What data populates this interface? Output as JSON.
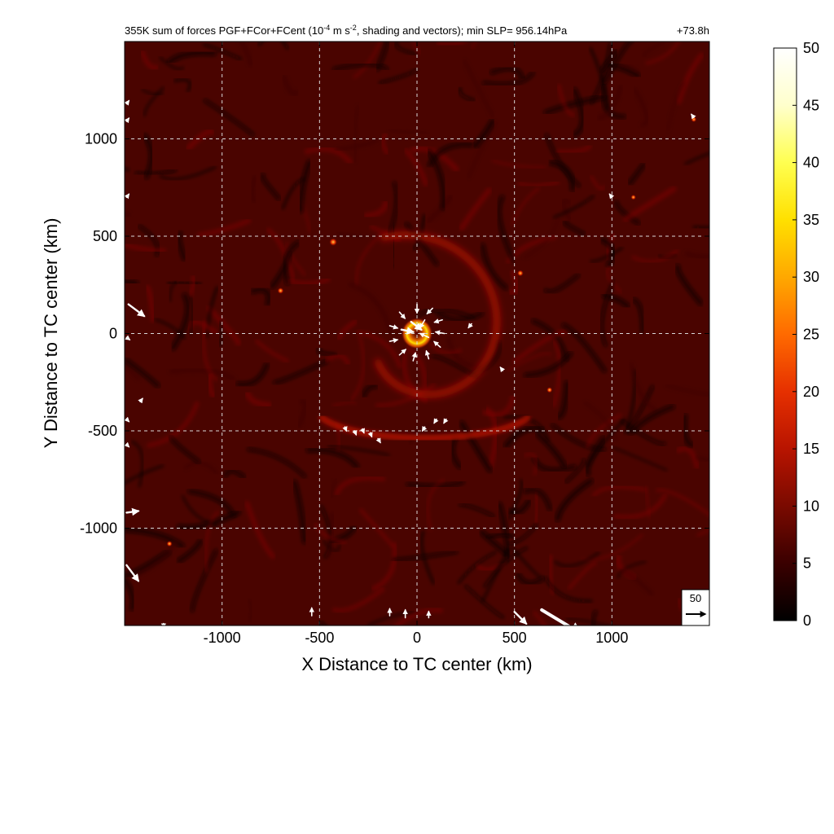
{
  "chart_data": {
    "type": "heatmap",
    "title": "355K sum of forces PGF+FCor+FCent (10",
    "title_exponent": "-4",
    "title_units_mid": " m s",
    "title_units_exponent": "-2",
    "title_rest": ", shading and vectors); min SLP= 956.14hPa",
    "forecast_time": "+73.8h",
    "xlabel": "X Distance to TC center (km)",
    "ylabel": "Y Distance to TC center (km)",
    "xlim": [
      -1500,
      1500
    ],
    "ylim": [
      -1500,
      1500
    ],
    "xticks": [
      -1000,
      -500,
      0,
      500,
      1000
    ],
    "yticks": [
      -1000,
      -500,
      0,
      500,
      1000
    ],
    "xtick_labels": [
      "-1000",
      "-500",
      "0",
      "500",
      "1000"
    ],
    "ytick_labels": [
      "-1000",
      "-500",
      "0",
      "500",
      "1000"
    ],
    "grid": true,
    "colorbar": {
      "min": 0,
      "max": 50,
      "ticks": [
        0,
        5,
        10,
        15,
        20,
        25,
        30,
        35,
        40,
        45,
        50
      ],
      "tick_labels": [
        "0",
        "5",
        "10",
        "15",
        "20",
        "25",
        "30",
        "35",
        "40",
        "45",
        "50"
      ],
      "colormap": [
        "#000000",
        "#3a0000",
        "#7a0a00",
        "#b81400",
        "#e63000",
        "#ff6a00",
        "#ffa800",
        "#ffe000",
        "#ffff50",
        "#ffffcc",
        "#ffffff"
      ]
    },
    "reference_vector": {
      "label": "50",
      "value": 50
    },
    "background_level": 6,
    "eyewall": {
      "center": [
        0,
        0
      ],
      "radius_km": 70,
      "peak_value": 38
    },
    "spiral_band": {
      "value": 14
    },
    "hotspots": [
      {
        "x": -430,
        "y": 470,
        "value": 18
      },
      {
        "x": -700,
        "y": 220,
        "value": 12
      },
      {
        "x": 530,
        "y": 310,
        "value": 12
      },
      {
        "x": 680,
        "y": -290,
        "value": 10
      },
      {
        "x": -1270,
        "y": -1080,
        "value": 10
      },
      {
        "x": 1420,
        "y": 1100,
        "value": 9
      },
      {
        "x": 1110,
        "y": 700,
        "value": 8
      }
    ],
    "vectors": [
      {
        "x": 0,
        "y": 150,
        "u": 0,
        "v": -22
      },
      {
        "x": 80,
        "y": 130,
        "u": -14,
        "v": -14
      },
      {
        "x": 130,
        "y": 70,
        "u": -20,
        "v": -6
      },
      {
        "x": 140,
        "y": 0,
        "u": -22,
        "v": 4
      },
      {
        "x": 120,
        "y": -70,
        "u": -16,
        "v": 14
      },
      {
        "x": 60,
        "y": -130,
        "u": -6,
        "v": 20
      },
      {
        "x": -20,
        "y": -140,
        "u": 6,
        "v": 20
      },
      {
        "x": -90,
        "y": -110,
        "u": 16,
        "v": 14
      },
      {
        "x": -140,
        "y": -40,
        "u": 20,
        "v": 4
      },
      {
        "x": -140,
        "y": 40,
        "u": 20,
        "v": -6
      },
      {
        "x": -90,
        "y": 110,
        "u": 14,
        "v": -16
      },
      {
        "x": -30,
        "y": 60,
        "u": 26,
        "v": -20
      },
      {
        "x": -80,
        "y": 20,
        "u": 30,
        "v": -6
      },
      {
        "x": 40,
        "y": 70,
        "u": -12,
        "v": -20
      },
      {
        "x": 60,
        "y": -20,
        "u": -22,
        "v": 10
      },
      {
        "x": 280,
        "y": 50,
        "u": -8,
        "v": -10
      },
      {
        "x": 440,
        "y": -190,
        "u": -6,
        "v": 8
      },
      {
        "x": -370,
        "y": -480,
        "u": 4,
        "v": -10
      },
      {
        "x": -320,
        "y": -500,
        "u": 4,
        "v": -10
      },
      {
        "x": -280,
        "y": -490,
        "u": 4,
        "v": -10
      },
      {
        "x": -240,
        "y": -510,
        "u": 4,
        "v": -10
      },
      {
        "x": -200,
        "y": -540,
        "u": 6,
        "v": -10
      },
      {
        "x": 40,
        "y": -480,
        "u": -6,
        "v": -10
      },
      {
        "x": 100,
        "y": -440,
        "u": -6,
        "v": -10
      },
      {
        "x": 150,
        "y": -440,
        "u": -6,
        "v": -10
      },
      {
        "x": -1490,
        "y": 1180,
        "u": 6,
        "v": 8
      },
      {
        "x": -1490,
        "y": 1090,
        "u": 6,
        "v": 8
      },
      {
        "x": -1490,
        "y": 700,
        "u": 6,
        "v": 8
      },
      {
        "x": -1480,
        "y": 150,
        "u": 40,
        "v": -30
      },
      {
        "x": -1490,
        "y": -20,
        "u": 8,
        "v": -6
      },
      {
        "x": -1420,
        "y": -350,
        "u": 6,
        "v": 8
      },
      {
        "x": -1490,
        "y": -440,
        "u": 6,
        "v": -6
      },
      {
        "x": -1490,
        "y": -570,
        "u": 6,
        "v": -6
      },
      {
        "x": -1490,
        "y": -920,
        "u": 30,
        "v": 4
      },
      {
        "x": -1490,
        "y": -1190,
        "u": 30,
        "v": -40
      },
      {
        "x": 1420,
        "y": 1110,
        "u": -6,
        "v": 8
      },
      {
        "x": 1000,
        "y": 700,
        "u": -6,
        "v": 8
      },
      {
        "x": 500,
        "y": -1430,
        "u": 30,
        "v": -30
      },
      {
        "x": 640,
        "y": -1420,
        "u": 100,
        "v": -60
      },
      {
        "x": -540,
        "y": -1450,
        "u": 0,
        "v": 20
      },
      {
        "x": -140,
        "y": -1450,
        "u": 0,
        "v": 18
      },
      {
        "x": -60,
        "y": -1460,
        "u": 0,
        "v": 20
      },
      {
        "x": 60,
        "y": -1460,
        "u": 0,
        "v": 16
      },
      {
        "x": -1300,
        "y": -1490,
        "u": 0,
        "v": -10
      }
    ]
  }
}
